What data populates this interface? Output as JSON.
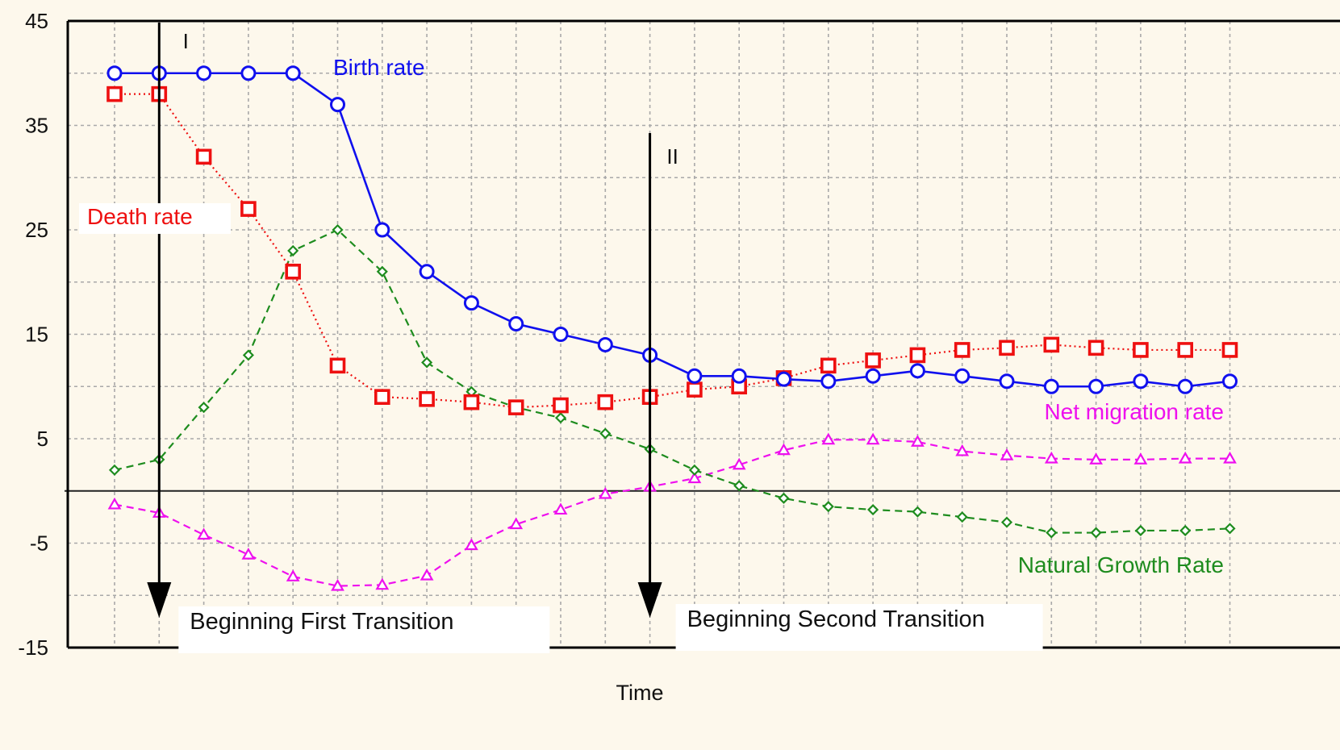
{
  "chart_data": {
    "type": "line",
    "xlabel": "Time",
    "ylabel": "",
    "ylim": [
      -15,
      45
    ],
    "yticks": [
      45,
      35,
      25,
      15,
      5,
      -5,
      -15
    ],
    "grid": true,
    "x": [
      1,
      2,
      3,
      4,
      5,
      6,
      7,
      8,
      9,
      10,
      11,
      12,
      13,
      14,
      15,
      16,
      17,
      18,
      19,
      20,
      21,
      22,
      23,
      24,
      25,
      26
    ],
    "series": [
      {
        "name": "Birth rate",
        "color": "#1010ee",
        "marker": "circle",
        "line": "solid",
        "values": [
          40,
          40,
          40,
          40,
          40,
          37,
          25,
          21,
          18,
          16,
          15,
          14,
          13,
          11,
          11,
          10.7,
          10.5,
          11,
          11.5,
          11,
          10.5,
          10,
          10,
          10.5,
          10,
          10.5
        ]
      },
      {
        "name": "Death rate",
        "color": "#ee1010",
        "marker": "square",
        "line": "dotted",
        "values": [
          38,
          38,
          32,
          27,
          21,
          12,
          9,
          8.8,
          8.5,
          8,
          8.2,
          8.5,
          9,
          9.7,
          10,
          10.8,
          12,
          12.5,
          13,
          13.5,
          13.7,
          14,
          13.7,
          13.5,
          13.5,
          13.5
        ]
      },
      {
        "name": "Natural Growth Rate",
        "color": "#1e8c1e",
        "marker": "diamond",
        "line": "dashed",
        "values": [
          2,
          3,
          8,
          13,
          23,
          25,
          21,
          12.3,
          9.5,
          8,
          7,
          5.5,
          4,
          2,
          0.5,
          -0.7,
          -1.5,
          -1.8,
          -2,
          -2.5,
          -3,
          -4,
          -4,
          -3.8,
          -3.8,
          -3.6
        ]
      },
      {
        "name": "Net migration rate",
        "color": "#ee10ee",
        "marker": "triangle",
        "line": "dashed",
        "values": [
          -1.3,
          -2.1,
          -4.2,
          -6.1,
          -8.2,
          -9.1,
          -9,
          -8.1,
          -5.2,
          -3.2,
          -1.8,
          -0.3,
          0.4,
          1.2,
          2.5,
          3.9,
          4.9,
          4.9,
          4.7,
          3.8,
          3.4,
          3.1,
          3,
          3,
          3.1,
          3.1
        ]
      }
    ],
    "annotations": [
      {
        "text": "I",
        "x": 2
      },
      {
        "text": "II",
        "x": 13
      },
      {
        "text": "Beginning First Transition",
        "x": 2
      },
      {
        "text": "Beginning Second Transition",
        "x": 13
      }
    ]
  }
}
